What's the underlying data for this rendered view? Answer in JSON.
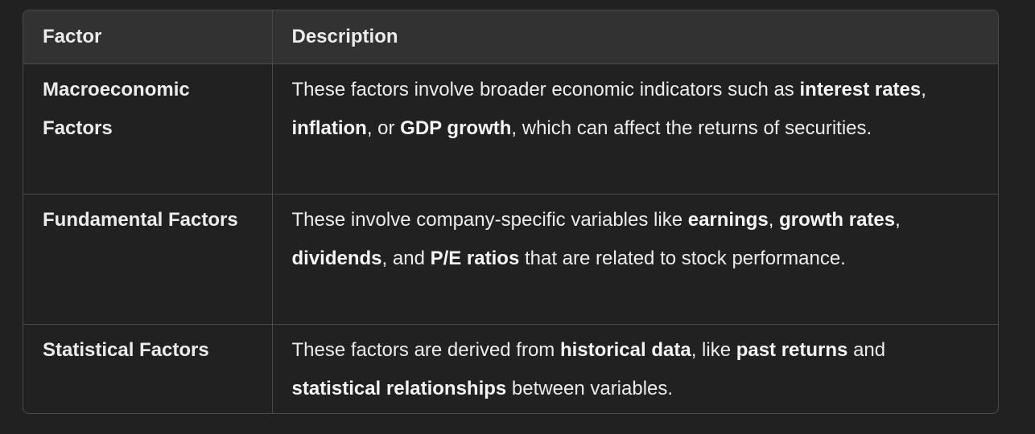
{
  "table": {
    "headers": {
      "factor": "Factor",
      "description": "Description"
    },
    "rows": [
      {
        "factor": "Macroeconomic Factors",
        "description": [
          {
            "t": "These factors involve broader economic indicators such as ",
            "b": false
          },
          {
            "t": "interest rates",
            "b": true
          },
          {
            "t": ", ",
            "b": false
          },
          {
            "t": "inflation",
            "b": true
          },
          {
            "t": ", or ",
            "b": false
          },
          {
            "t": "GDP growth",
            "b": true
          },
          {
            "t": ", which can affect the returns of securities.",
            "b": false
          }
        ]
      },
      {
        "factor": "Fundamental Factors",
        "description": [
          {
            "t": "These involve company-specific variables like ",
            "b": false
          },
          {
            "t": "earnings",
            "b": true
          },
          {
            "t": ", ",
            "b": false
          },
          {
            "t": "growth rates",
            "b": true
          },
          {
            "t": ", ",
            "b": false
          },
          {
            "t": "dividends",
            "b": true
          },
          {
            "t": ", and ",
            "b": false
          },
          {
            "t": "P/E ratios",
            "b": true
          },
          {
            "t": " that are related to stock performance.",
            "b": false
          }
        ]
      },
      {
        "factor": "Statistical Factors",
        "description": [
          {
            "t": "These factors are derived from ",
            "b": false
          },
          {
            "t": "historical data",
            "b": true
          },
          {
            "t": ", like ",
            "b": false
          },
          {
            "t": "past returns",
            "b": true
          },
          {
            "t": " and ",
            "b": false
          },
          {
            "t": "statistical relationships",
            "b": true
          },
          {
            "t": " between variables.",
            "b": false
          }
        ]
      }
    ]
  }
}
